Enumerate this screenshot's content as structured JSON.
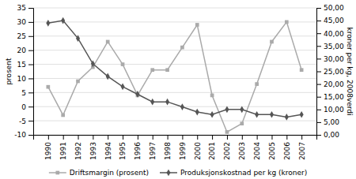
{
  "chart_data": {
    "type": "line",
    "x": [
      1990,
      1991,
      1992,
      1993,
      1994,
      1995,
      1996,
      1997,
      1998,
      1999,
      2000,
      2001,
      2002,
      2003,
      2004,
      2005,
      2006,
      2007
    ],
    "xlim": [
      1989,
      2008
    ],
    "xticks": [
      1990,
      1991,
      1992,
      1993,
      1994,
      1995,
      1996,
      1997,
      1998,
      1999,
      2000,
      2001,
      2002,
      2003,
      2004,
      2005,
      2006,
      2007
    ],
    "series": [
      {
        "name": "Driftsmargin (prosent)",
        "color": "#aaaaaa",
        "marker": "square",
        "values": [
          7,
          -3,
          9,
          14,
          23,
          15,
          4,
          13,
          13,
          21,
          29,
          4,
          -9,
          -6,
          8,
          23,
          30,
          13
        ]
      },
      {
        "name": "Produksjonskostnad per kg (kroner)",
        "color": "#555555",
        "marker": "diamond",
        "axis": "y2",
        "values": [
          44,
          45,
          38,
          28,
          23,
          19,
          16,
          13,
          13,
          11,
          9,
          8,
          10,
          10,
          8,
          8,
          7,
          8
        ]
      }
    ],
    "y_label": "prosent",
    "y2_label": "kroner per kg, 2008verdi",
    "ylim": [
      -10,
      35
    ],
    "yticks": [
      -10,
      -5,
      0,
      5,
      10,
      15,
      20,
      25,
      30,
      35
    ],
    "y2lim": [
      0,
      50
    ],
    "y2ticks": [
      {
        "value": 0.0,
        "label": "0,00"
      },
      {
        "value": 5.0,
        "label": "5,00"
      },
      {
        "value": 10.0,
        "label": "10,00"
      },
      {
        "value": 15.0,
        "label": "15,00"
      },
      {
        "value": 20.0,
        "label": "20,00"
      },
      {
        "value": 25.0,
        "label": "25,00"
      },
      {
        "value": 30.0,
        "label": "30,00"
      },
      {
        "value": 35.0,
        "label": "35,00"
      },
      {
        "value": 40.0,
        "label": "40,00"
      },
      {
        "value": 45.0,
        "label": "45,00"
      },
      {
        "value": 50.0,
        "label": "50,00"
      }
    ],
    "grid": true,
    "legend": "bottom"
  }
}
